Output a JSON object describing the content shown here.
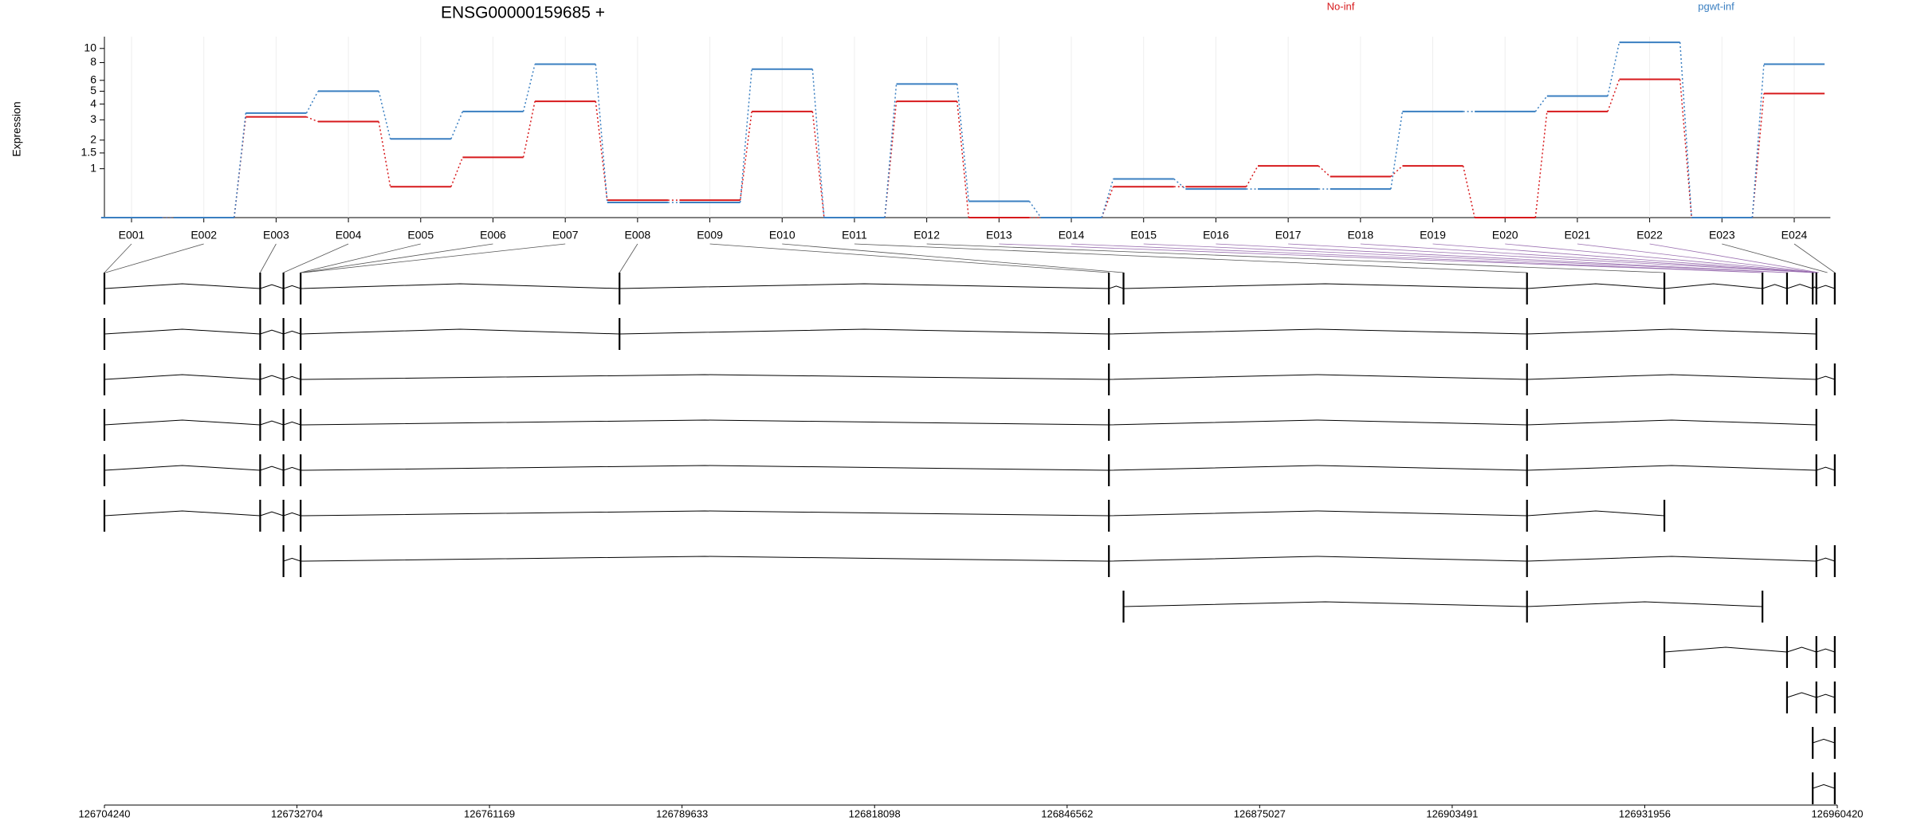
{
  "chart_data": [
    {
      "type": "line",
      "title": "ENSG00000159685 +",
      "y_label": "Expression",
      "y_scale": "log1p",
      "grid": true,
      "categories": [
        "E001",
        "E002",
        "E003",
        "E004",
        "E005",
        "E006",
        "E007",
        "E008",
        "E009",
        "E010",
        "E011",
        "E012",
        "E013",
        "E014",
        "E015",
        "E016",
        "E017",
        "E018",
        "E019",
        "E020",
        "E021",
        "E022",
        "E023",
        "E024"
      ],
      "series": [
        {
          "name": "No-inf",
          "color": "#d7191c",
          "values": [
            0,
            0,
            3.17,
            2.9,
            0.55,
            1.35,
            4.2,
            0.28,
            0.28,
            3.5,
            0,
            4.2,
            0,
            0,
            0.55,
            0.55,
            1.08,
            0.79,
            1.08,
            0,
            3.5,
            6.1,
            0,
            4.8
          ]
        },
        {
          "name": "pgwt-inf",
          "color": "#3a7fc1",
          "values": [
            0,
            0,
            3.4,
            5.0,
            2.05,
            3.5,
            7.8,
            0.24,
            0.24,
            7.2,
            0,
            5.65,
            0.26,
            0,
            0.73,
            0.5,
            0.5,
            0.5,
            3.5,
            3.5,
            4.6,
            11.0,
            0,
            7.8
          ]
        }
      ],
      "ylim": [
        0,
        12
      ],
      "yticks": [
        1,
        1.5,
        2,
        3,
        4,
        5,
        6,
        8,
        10
      ]
    },
    {
      "type": "gene_model",
      "xlim": [
        126704240,
        126960420
      ],
      "xticks": [
        126704240,
        126732704,
        126761169,
        126789633,
        126818098,
        126846562,
        126875027,
        126903491,
        126931956,
        126960420
      ],
      "exon_positions": [
        126704240,
        126704421,
        126727265,
        126730710,
        126733250,
        126733430,
        126733610,
        126780390,
        126852740,
        126854900,
        126914550,
        126934860,
        126949360,
        126949540,
        126952990,
        126953170,
        126956790,
        126956970,
        126957150,
        126957330,
        126957510,
        126957690,
        126958960,
        126960050
      ],
      "transcripts": [
        {
          "exons": [
            126704240,
            126727265,
            126730710,
            126733250,
            126780390,
            126852740,
            126854900,
            126914550,
            126934860,
            126949360,
            126952990,
            126956790,
            126957330,
            126960050
          ]
        },
        {
          "exons": [
            126704240,
            126727265,
            126730710,
            126733250,
            126780390,
            126852740,
            126914550,
            126957330
          ]
        },
        {
          "exons": [
            126704240,
            126727265,
            126730710,
            126733250,
            126852740,
            126914550,
            126957330,
            126960050
          ]
        },
        {
          "exons": [
            126704240,
            126727265,
            126730710,
            126733250,
            126852740,
            126914550,
            126957330
          ]
        },
        {
          "exons": [
            126704240,
            126727265,
            126730710,
            126733250,
            126852740,
            126914550,
            126957330,
            126960050
          ]
        },
        {
          "exons": [
            126704240,
            126727265,
            126730710,
            126733250,
            126852740,
            126914550,
            126934860
          ]
        },
        {
          "exons": [
            126730710,
            126733250,
            126852740,
            126914550,
            126957330,
            126960050
          ]
        },
        {
          "exons": [
            126854900,
            126914550,
            126949360
          ]
        },
        {
          "exons": [
            126934860,
            126952990,
            126957330,
            126960050
          ]
        },
        {
          "exons": [
            126952990,
            126957330,
            126960050
          ]
        },
        {
          "exons": [
            126956790,
            126960050
          ]
        },
        {
          "exons": [
            126956790,
            126960050
          ]
        }
      ]
    }
  ]
}
